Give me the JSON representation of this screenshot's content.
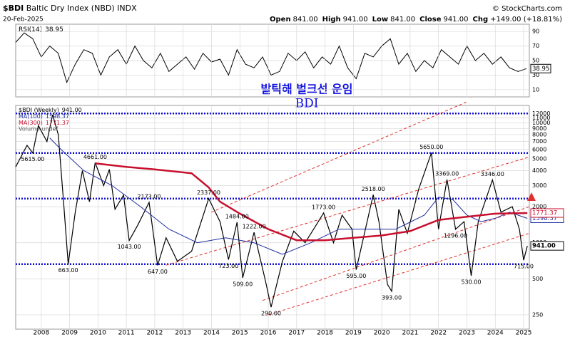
{
  "header": {
    "symbol": "$BDI",
    "name": "Baltic Dry Index (NBD) INDX",
    "source": "© StockCharts.com",
    "date": "20-Feb-2025",
    "quote": [
      {
        "label": "Open",
        "value": "841.00"
      },
      {
        "label": "High",
        "value": "941.00"
      },
      {
        "label": "Low",
        "value": "841.00"
      },
      {
        "label": "Close",
        "value": "941.00"
      },
      {
        "label": "Chg",
        "value": "+149.00 (+18.81%)"
      }
    ],
    "annotation_title": "발틱해 벌크선 운임",
    "annotation_subtitle": "BDI"
  },
  "chart_data": [
    {
      "type": "line",
      "xlim": [
        2007.1,
        2025.2
      ],
      "ylim": [
        0,
        100
      ],
      "yticks": [
        10,
        30,
        50,
        70,
        90
      ],
      "grid": true,
      "series": [
        {
          "name": "RSI(14)",
          "color": "#000000",
          "x": [
            2007.1,
            2007.4,
            2007.7,
            2008.0,
            2008.3,
            2008.6,
            2008.9,
            2009.2,
            2009.5,
            2009.8,
            2010.1,
            2010.4,
            2010.7,
            2011.0,
            2011.3,
            2011.6,
            2011.9,
            2012.2,
            2012.5,
            2012.8,
            2013.1,
            2013.4,
            2013.7,
            2014.0,
            2014.3,
            2014.6,
            2014.9,
            2015.2,
            2015.5,
            2015.8,
            2016.1,
            2016.4,
            2016.7,
            2017.0,
            2017.3,
            2017.6,
            2017.9,
            2018.2,
            2018.5,
            2018.8,
            2019.1,
            2019.4,
            2019.7,
            2020.0,
            2020.3,
            2020.6,
            2020.9,
            2021.2,
            2021.5,
            2021.8,
            2022.1,
            2022.4,
            2022.7,
            2023.0,
            2023.3,
            2023.6,
            2023.9,
            2024.2,
            2024.5,
            2024.8,
            2025.1
          ],
          "values": [
            75,
            88,
            80,
            55,
            70,
            60,
            20,
            45,
            65,
            60,
            30,
            55,
            65,
            45,
            70,
            50,
            40,
            60,
            35,
            45,
            55,
            38,
            60,
            48,
            52,
            30,
            65,
            45,
            40,
            55,
            30,
            35,
            60,
            50,
            62,
            40,
            55,
            45,
            70,
            40,
            25,
            60,
            55,
            70,
            80,
            45,
            60,
            35,
            50,
            40,
            65,
            55,
            45,
            70,
            50,
            60,
            45,
            55,
            40,
            35,
            38.95
          ]
        }
      ]
    },
    {
      "type": "line",
      "log": true,
      "xlim": [
        2007.1,
        2025.2
      ],
      "ylim": [
        190,
        14000
      ],
      "xticks": [
        2008,
        2009,
        2010,
        2011,
        2012,
        2013,
        2014,
        2015,
        2016,
        2017,
        2018,
        2019,
        2020,
        2021,
        2022,
        2023,
        2024,
        2025
      ],
      "yticks": [
        250,
        500,
        1000,
        2000,
        3000,
        4000,
        5000,
        6000,
        7000,
        8000,
        9000,
        10000,
        11000,
        12000
      ],
      "grid": true,
      "series": [
        {
          "name": "$BDI (Weekly)",
          "color": "#000000",
          "last_label": "941.00",
          "x": [
            2007.1,
            2007.5,
            2007.7,
            2007.9,
            2008.2,
            2008.4,
            2008.6,
            2008.8,
            2008.95,
            2009.2,
            2009.45,
            2009.7,
            2009.9,
            2010.2,
            2010.4,
            2010.6,
            2010.9,
            2011.1,
            2011.4,
            2011.8,
            2012.1,
            2012.4,
            2012.8,
            2013.3,
            2013.9,
            2014.3,
            2014.6,
            2014.9,
            2015.1,
            2015.5,
            2015.9,
            2016.1,
            2016.5,
            2016.9,
            2017.3,
            2017.6,
            2017.95,
            2018.3,
            2018.6,
            2018.95,
            2019.1,
            2019.7,
            2019.9,
            2020.2,
            2020.35,
            2020.6,
            2020.9,
            2021.3,
            2021.75,
            2022.0,
            2022.3,
            2022.6,
            2022.9,
            2023.15,
            2023.4,
            2023.9,
            2024.2,
            2024.6,
            2024.85,
            2025.0,
            2025.13
          ],
          "values": [
            4300,
            6500,
            5615,
            9500,
            7000,
            11700,
            8000,
            2000,
            663,
            1800,
            4000,
            2200,
            4661,
            3000,
            4100,
            1900,
            2500,
            1043,
            1400,
            2173,
            647,
            1100,
            700,
            850,
            2337,
            1500,
            723,
            1484,
            509,
            1222,
            480,
            290,
            700,
            1250,
            1000,
            1300,
            1773,
            1000,
            1700,
            1300,
            595,
            2518,
            1500,
            450,
            393,
            1900,
            1200,
            2800,
            5650,
            1300,
            3369,
            1296,
            1500,
            530,
            1500,
            3346,
            1800,
            2000,
            1300,
            715,
            941
          ]
        },
        {
          "name": "MA(100)",
          "color": "#1f2f9f",
          "last_label": "1598.37",
          "x": [
            2008.3,
            2008.7,
            2009.5,
            2010.5,
            2011.5,
            2012.5,
            2013.5,
            2014.5,
            2015.5,
            2016.5,
            2017.5,
            2018.5,
            2019.5,
            2020.5,
            2021.5,
            2022.0,
            2022.5,
            2023.0,
            2023.5,
            2024.0,
            2024.5,
            2025.13
          ],
          "values": [
            7500,
            6000,
            4000,
            3000,
            2000,
            1300,
            1000,
            1100,
            1000,
            800,
            1000,
            1300,
            1300,
            1300,
            1700,
            2400,
            2300,
            1700,
            1500,
            1600,
            1800,
            1598.37
          ]
        },
        {
          "name": "MA(300)",
          "color": "#c8102e",
          "last_label": "1771.37",
          "x": [
            2009.9,
            2011.0,
            2012.0,
            2013.3,
            2013.9,
            2014.3,
            2015.0,
            2016.0,
            2017.0,
            2018.0,
            2019.0,
            2020.0,
            2021.0,
            2022.0,
            2023.0,
            2024.0,
            2025.13
          ],
          "values": [
            4600,
            4300,
            4100,
            3800,
            2900,
            2200,
            1750,
            1300,
            1050,
            1050,
            1100,
            1150,
            1250,
            1550,
            1650,
            1750,
            1771.37
          ]
        }
      ],
      "notes": [
        "Volume undef"
      ],
      "hlines": {
        "color": "#1010d0",
        "values": [
          12000,
          5615,
          2337,
          663
        ]
      },
      "trendlines": {
        "color": "#e0302a",
        "lines": [
          {
            "x": [
              2014.0,
              2023.0
            ],
            "values": [
              1800,
              15000
            ]
          },
          {
            "x": [
              2012.4,
              2025.2
            ],
            "values": [
              650,
              5200
            ]
          },
          {
            "x": [
              2015.8,
              2025.2
            ],
            "values": [
              330,
              2000
            ]
          },
          {
            "x": [
              2016.0,
              2025.2
            ],
            "values": [
              250,
              1200
            ]
          }
        ]
      },
      "annotations": [
        {
          "x": 2007.7,
          "value": 5615,
          "label": "5615.00"
        },
        {
          "x": 2009.9,
          "value": 4661,
          "label": "4661.00"
        },
        {
          "x": 2011.8,
          "value": 2173,
          "label": "2173.00"
        },
        {
          "x": 2011.1,
          "value": 1043,
          "label": "1043.00"
        },
        {
          "x": 2008.95,
          "value": 663,
          "label": "663.00"
        },
        {
          "x": 2012.1,
          "value": 647,
          "label": "647.00"
        },
        {
          "x": 2013.9,
          "value": 2337,
          "label": "2337.00"
        },
        {
          "x": 2014.9,
          "value": 1484,
          "label": "1484.00"
        },
        {
          "x": 2015.5,
          "value": 1222,
          "label": "1222.00"
        },
        {
          "x": 2014.6,
          "value": 723,
          "label": "723.00"
        },
        {
          "x": 2015.1,
          "value": 509,
          "label": "509.00"
        },
        {
          "x": 2016.1,
          "value": 290,
          "label": "290.00"
        },
        {
          "x": 2017.95,
          "value": 1773,
          "label": "1773.00"
        },
        {
          "x": 2019.7,
          "value": 2518,
          "label": "2518.00"
        },
        {
          "x": 2019.1,
          "value": 595,
          "label": "595.00"
        },
        {
          "x": 2020.35,
          "value": 393,
          "label": "393.00"
        },
        {
          "x": 2021.75,
          "value": 5650,
          "label": "5650.00"
        },
        {
          "x": 2022.3,
          "value": 3369,
          "label": "3369.00"
        },
        {
          "x": 2022.6,
          "value": 1296,
          "label": "1296.00"
        },
        {
          "x": 2023.9,
          "value": 3346,
          "label": "3346.00"
        },
        {
          "x": 2023.15,
          "value": 530,
          "label": "530.00"
        },
        {
          "x": 2025.0,
          "value": 715,
          "label": "715.00"
        }
      ]
    }
  ]
}
